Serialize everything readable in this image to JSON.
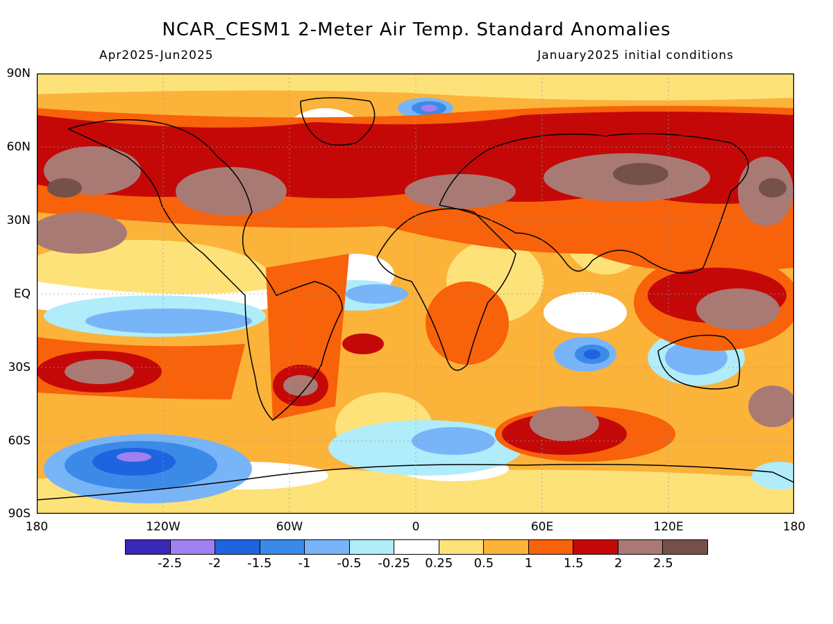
{
  "title": "NCAR_CESM1 2-Meter Air Temp. Standard Anomalies",
  "period": "Apr2025-Jun2025",
  "init": "January2025 initial conditions",
  "lat_labels": [
    "90N",
    "60N",
    "30N",
    "EQ",
    "30S",
    "60S",
    "90S"
  ],
  "lon_labels": [
    "180",
    "120W",
    "60W",
    "0",
    "60E",
    "120E",
    "180"
  ],
  "legend": {
    "colors": [
      "#3a28b8",
      "#9f80f0",
      "#1e64e0",
      "#3c8ae8",
      "#78b4f8",
      "#b0ecfa",
      "#ffffff",
      "#fde27a",
      "#fcb33a",
      "#f7620a",
      "#c40808",
      "#a97a74",
      "#74514a"
    ],
    "labels": [
      "-2.5",
      "-2",
      "-1.5",
      "-1",
      "-0.5",
      "-0.25",
      "0.25",
      "0.5",
      "1",
      "1.5",
      "2",
      "2.5"
    ]
  }
}
